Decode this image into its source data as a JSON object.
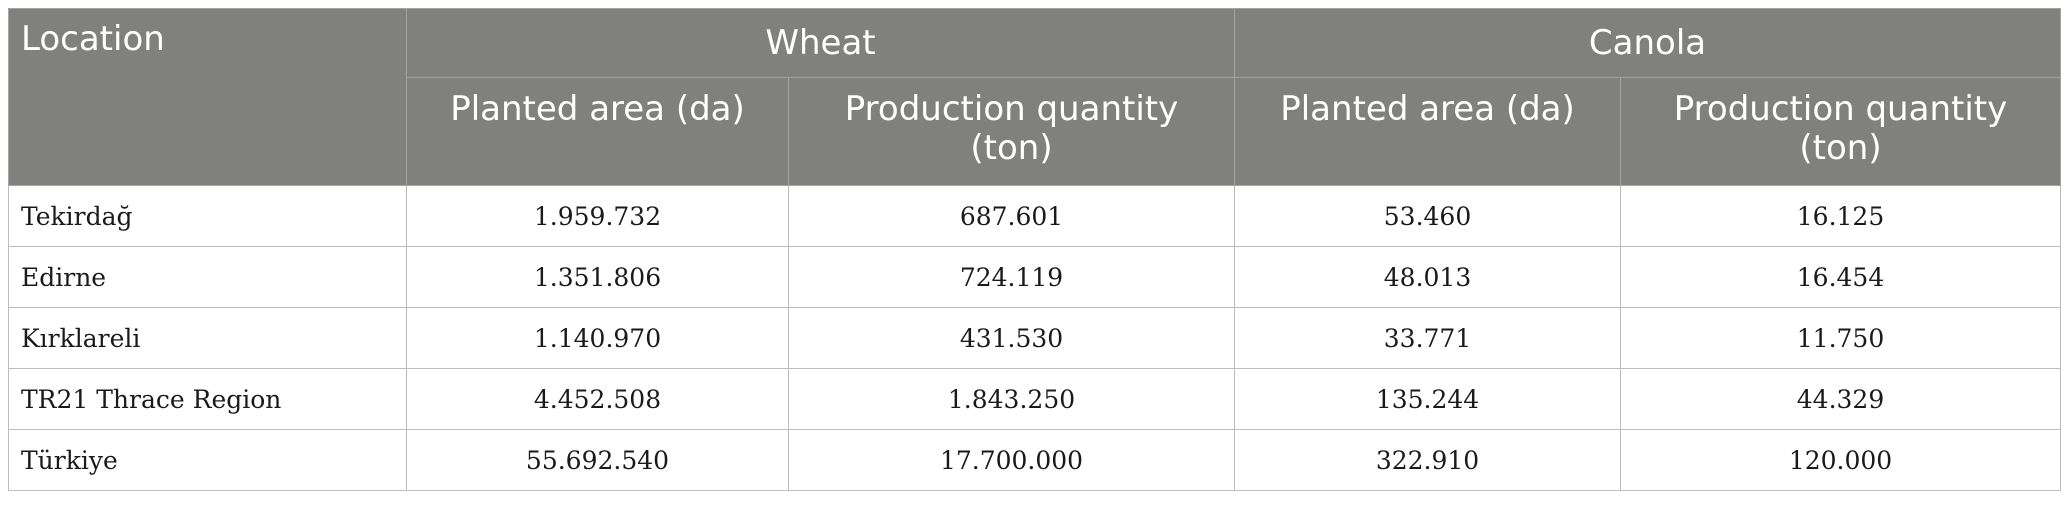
{
  "table": {
    "header": {
      "location": "Location",
      "groups": [
        "Wheat",
        "Canola"
      ],
      "sub": [
        "Planted area (da)",
        "Production quantity (ton)",
        "Planted area (da)",
        "Production quantity (ton)"
      ]
    },
    "rows": [
      {
        "name": "Tekirdağ",
        "values": [
          "1.959.732",
          "687.601",
          "53.460",
          "16.125"
        ]
      },
      {
        "name": "Edirne",
        "values": [
          "1.351.806",
          "724.119",
          "48.013",
          "16.454"
        ]
      },
      {
        "name": "Kırklareli",
        "values": [
          "1.140.970",
          "431.530",
          "33.771",
          "11.750"
        ]
      },
      {
        "name": "TR21 Thrace Region",
        "values": [
          "4.452.508",
          "1.843.250",
          "135.244",
          "44.329"
        ]
      },
      {
        "name": "Türkiye",
        "values": [
          "55.692.540",
          "17.700.000",
          "322.910",
          "120.000"
        ]
      }
    ]
  }
}
